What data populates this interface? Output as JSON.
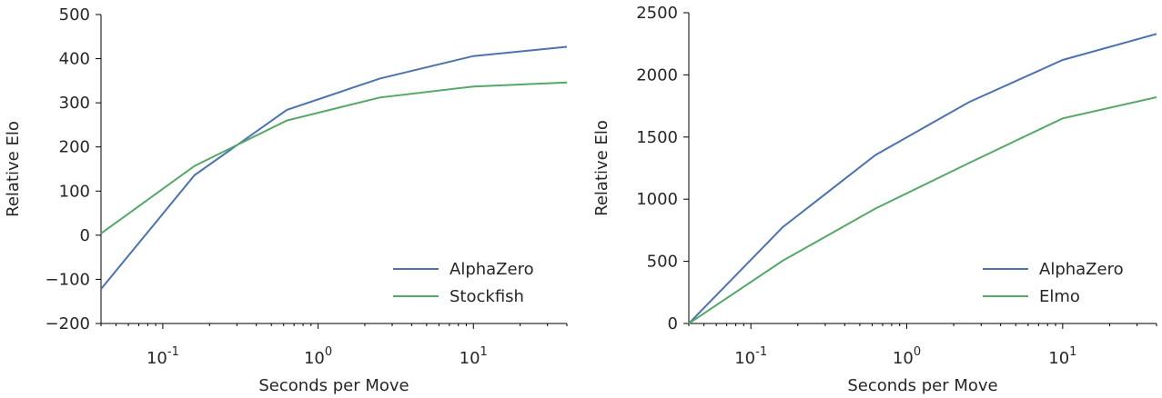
{
  "chart_data": [
    {
      "type": "line",
      "xlabel": "Seconds per Move",
      "ylabel": "Relative Elo",
      "xscale": "log",
      "xlim": [
        0.04,
        40
      ],
      "ylim": [
        -200,
        500
      ],
      "yticks": [
        -200,
        -100,
        0,
        100,
        200,
        300,
        400,
        500
      ],
      "ytick_labels": [
        "−200",
        "−100",
        "0",
        "100",
        "200",
        "300",
        "400",
        "500"
      ],
      "xticks": [
        0.1,
        1,
        10
      ],
      "xtick_labels": [
        {
          "base": "10",
          "exp": "-1"
        },
        {
          "base": "10",
          "exp": "0"
        },
        {
          "base": "10",
          "exp": "1"
        }
      ],
      "legend_position": "lower-right",
      "grid": false,
      "series": [
        {
          "name": "AlphaZero",
          "color": "#4c72b0",
          "x": [
            0.04,
            0.16,
            0.63,
            2.5,
            10,
            40
          ],
          "y": [
            -122,
            136,
            284,
            355,
            406,
            427
          ]
        },
        {
          "name": "Stockfish",
          "color": "#55a868",
          "x": [
            0.04,
            0.16,
            0.63,
            2.5,
            10,
            40
          ],
          "y": [
            4,
            157,
            260,
            312,
            337,
            346
          ]
        }
      ]
    },
    {
      "type": "line",
      "xlabel": "Seconds per Move",
      "ylabel": "Relative Elo",
      "xscale": "log",
      "xlim": [
        0.04,
        40
      ],
      "ylim": [
        0,
        2500
      ],
      "yticks": [
        0,
        500,
        1000,
        1500,
        2000,
        2500
      ],
      "ytick_labels": [
        "0",
        "500",
        "1000",
        "1500",
        "2000",
        "2500"
      ],
      "xticks": [
        0.1,
        1,
        10
      ],
      "xtick_labels": [
        {
          "base": "10",
          "exp": "-1"
        },
        {
          "base": "10",
          "exp": "0"
        },
        {
          "base": "10",
          "exp": "1"
        }
      ],
      "legend_position": "lower-right",
      "grid": false,
      "series": [
        {
          "name": "AlphaZero",
          "color": "#4c72b0",
          "x": [
            0.04,
            0.16,
            0.63,
            2.5,
            10,
            40
          ],
          "y": [
            0,
            775,
            1355,
            1780,
            2120,
            2330
          ]
        },
        {
          "name": "Elmo",
          "color": "#55a868",
          "x": [
            0.04,
            0.16,
            0.63,
            2.5,
            10,
            40
          ],
          "y": [
            0,
            505,
            925,
            1290,
            1650,
            1820
          ]
        }
      ]
    }
  ]
}
